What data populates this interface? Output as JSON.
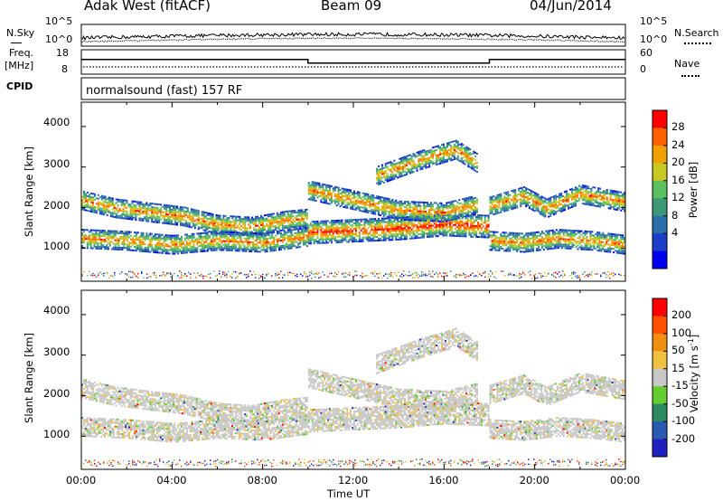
{
  "header": {
    "title": "Adak West (fitACF)",
    "beam": "Beam 09",
    "date": "04/Jun/2014"
  },
  "nsky_panel": {
    "left_label": "N.Sky",
    "left_ticks": [
      "10^5",
      "10^0"
    ],
    "right_label": "N.Search",
    "right_ticks": [
      "10^5",
      "10^0"
    ]
  },
  "freq_panel": {
    "left_label_1": "Freq.",
    "left_label_2": "[MHz]",
    "left_ticks": [
      "18",
      "8"
    ],
    "right_ticks": [
      "60",
      "0"
    ],
    "right_label": "Nave",
    "cpid_label": "CPID"
  },
  "cpid_panel": {
    "text": "normalsound (fast) 157 RF"
  },
  "power_panel": {
    "ylabel": "Slant Range [km]",
    "yticks": [
      "4000",
      "3000",
      "2000",
      "1000"
    ],
    "colorbar_label": "Power [dB]",
    "colorbar_ticks": [
      "28",
      "24",
      "20",
      "16",
      "12",
      "8",
      "4"
    ],
    "colors": [
      "#0000ee",
      "#1a3ec8",
      "#2b6fa8",
      "#3c9a78",
      "#5cc060",
      "#c8c820",
      "#f0a000",
      "#ff6000",
      "#ff0000"
    ]
  },
  "velocity_panel": {
    "ylabel": "Slant Range [km]",
    "yticks": [
      "4000",
      "3000",
      "2000",
      "1000"
    ],
    "colorbar_label": "Velocity [m s^-1]",
    "colorbar_ticks": [
      "200",
      "100",
      "50",
      "15",
      "-15",
      "-50",
      "-100",
      "-200"
    ],
    "colors": [
      "#2020c0",
      "#2a5ab0",
      "#2e8a60",
      "#66cc33",
      "#c8c8c8",
      "#f0c040",
      "#f09010",
      "#ff5000",
      "#ff0000"
    ]
  },
  "x_axis": {
    "ticks": [
      "00:00",
      "04:00",
      "08:00",
      "12:00",
      "16:00",
      "20:00",
      "00:00"
    ],
    "label": "Time UT"
  },
  "chart_data": {
    "type": "heatmap",
    "x_range_hours": [
      0,
      24
    ],
    "y_range_km": [
      180,
      4600
    ],
    "frequency_mhz": [
      {
        "start_h": 0.0,
        "end_h": 10.0,
        "value": 14
      },
      {
        "start_h": 10.0,
        "end_h": 18.0,
        "value": 12.5
      },
      {
        "start_h": 18.0,
        "end_h": 24.0,
        "value": 14
      }
    ],
    "echo_bands": [
      {
        "name": "upper band",
        "x": [
          0.0,
          1.5,
          3.0,
          4.5,
          6.0,
          7.5,
          9.0,
          10.0
        ],
        "y": [
          2200,
          2000,
          1900,
          1800,
          1600,
          1550,
          1700,
          1750
        ]
      },
      {
        "name": "lower band",
        "x": [
          0.0,
          2.0,
          4.0,
          6.0,
          8.0,
          10.0
        ],
        "y": [
          1250,
          1200,
          1100,
          1200,
          1150,
          1300
        ]
      },
      {
        "name": "intense region",
        "x": [
          10.0,
          12.0,
          14.0,
          16.0,
          18.0
        ],
        "y": [
          1400,
          1450,
          1500,
          1600,
          1550
        ]
      },
      {
        "name": "upper arc",
        "x": [
          10.0,
          12.0,
          14.0,
          16.0,
          17.5
        ],
        "y": [
          2450,
          2200,
          1950,
          1900,
          2100
        ]
      },
      {
        "name": "high arc",
        "x": [
          13.0,
          15.0,
          16.5,
          17.5
        ],
        "y": [
          2800,
          3200,
          3450,
          3100
        ]
      },
      {
        "name": "evening band",
        "x": [
          18.0,
          19.5,
          21.0,
          22.5,
          24.0
        ],
        "y": [
          1200,
          1150,
          1250,
          1200,
          1100
        ]
      },
      {
        "name": "evening upper",
        "x": [
          18.0,
          19.5,
          20.5,
          22.0,
          24.0
        ],
        "y": [
          2050,
          2300,
          2000,
          2350,
          2150
        ]
      }
    ]
  }
}
